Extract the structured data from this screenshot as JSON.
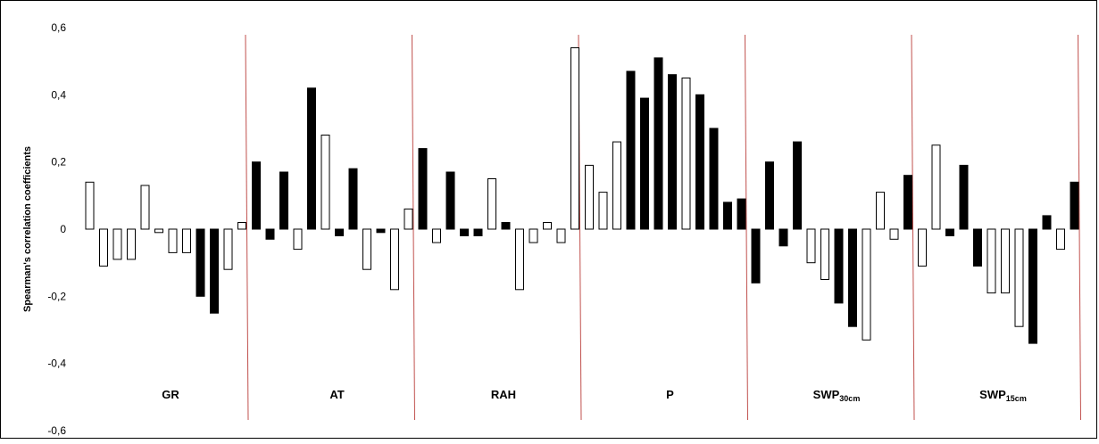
{
  "chart_data": {
    "type": "bar",
    "title": "",
    "xlabel": "",
    "ylabel": "Spearman's correlation coefficients",
    "ylim": [
      -0.6,
      0.6
    ],
    "yticks": [
      {
        "value": 0.6,
        "label": "0,6"
      },
      {
        "value": 0.4,
        "label": "0,4"
      },
      {
        "value": 0.2,
        "label": "0,2"
      },
      {
        "value": 0.0,
        "label": "0"
      },
      {
        "value": -0.2,
        "label": "-0,2"
      },
      {
        "value": -0.4,
        "label": "-0,4"
      },
      {
        "value": -0.6,
        "label": "-0,6"
      }
    ],
    "grid": false,
    "legend": "none",
    "colors": {
      "filled": "#000000",
      "hollow": "#ffffff",
      "outline": "#000000",
      "separator": "#c0504d"
    },
    "groups": [
      {
        "label": "GR",
        "sub": "",
        "values": [
          0.14,
          -0.11,
          -0.09,
          -0.09,
          0.13,
          -0.01,
          -0.07,
          -0.07,
          -0.2,
          -0.25,
          -0.12,
          0.02
        ],
        "filled": [
          false,
          false,
          false,
          false,
          false,
          false,
          false,
          false,
          true,
          true,
          false,
          false
        ]
      },
      {
        "label": "AT",
        "sub": "",
        "values": [
          0.2,
          -0.03,
          0.17,
          -0.06,
          0.42,
          0.28,
          -0.02,
          0.18,
          -0.12,
          -0.01,
          -0.18,
          0.06
        ],
        "filled": [
          true,
          true,
          true,
          false,
          true,
          false,
          true,
          true,
          false,
          true,
          false,
          false
        ]
      },
      {
        "label": "RAH",
        "sub": "",
        "values": [
          0.24,
          -0.04,
          0.17,
          -0.02,
          -0.02,
          0.15,
          0.02,
          -0.18,
          -0.04,
          0.02,
          -0.04,
          0.54
        ],
        "filled": [
          true,
          false,
          true,
          true,
          true,
          false,
          true,
          false,
          false,
          false,
          false,
          false
        ]
      },
      {
        "label": "P",
        "sub": "",
        "values": [
          0.19,
          0.11,
          0.26,
          0.47,
          0.39,
          0.51,
          0.46,
          0.45,
          0.4,
          0.3,
          0.08,
          0.09
        ],
        "filled": [
          false,
          false,
          false,
          true,
          true,
          true,
          true,
          false,
          true,
          true,
          true,
          true
        ]
      },
      {
        "label": "SWP",
        "sub": "30cm",
        "values": [
          -0.16,
          0.2,
          -0.05,
          0.26,
          -0.1,
          -0.15,
          -0.22,
          -0.29,
          -0.33,
          0.11,
          -0.03,
          0.16
        ],
        "filled": [
          true,
          true,
          true,
          true,
          false,
          false,
          true,
          true,
          false,
          false,
          false,
          true
        ]
      },
      {
        "label": "SWP",
        "sub": "15cm",
        "values": [
          -0.11,
          0.25,
          -0.02,
          0.19,
          -0.11,
          -0.19,
          -0.19,
          -0.29,
          -0.34,
          0.04,
          -0.06,
          0.14
        ],
        "filled": [
          false,
          false,
          true,
          true,
          true,
          false,
          false,
          false,
          true,
          true,
          false,
          true
        ]
      }
    ]
  }
}
